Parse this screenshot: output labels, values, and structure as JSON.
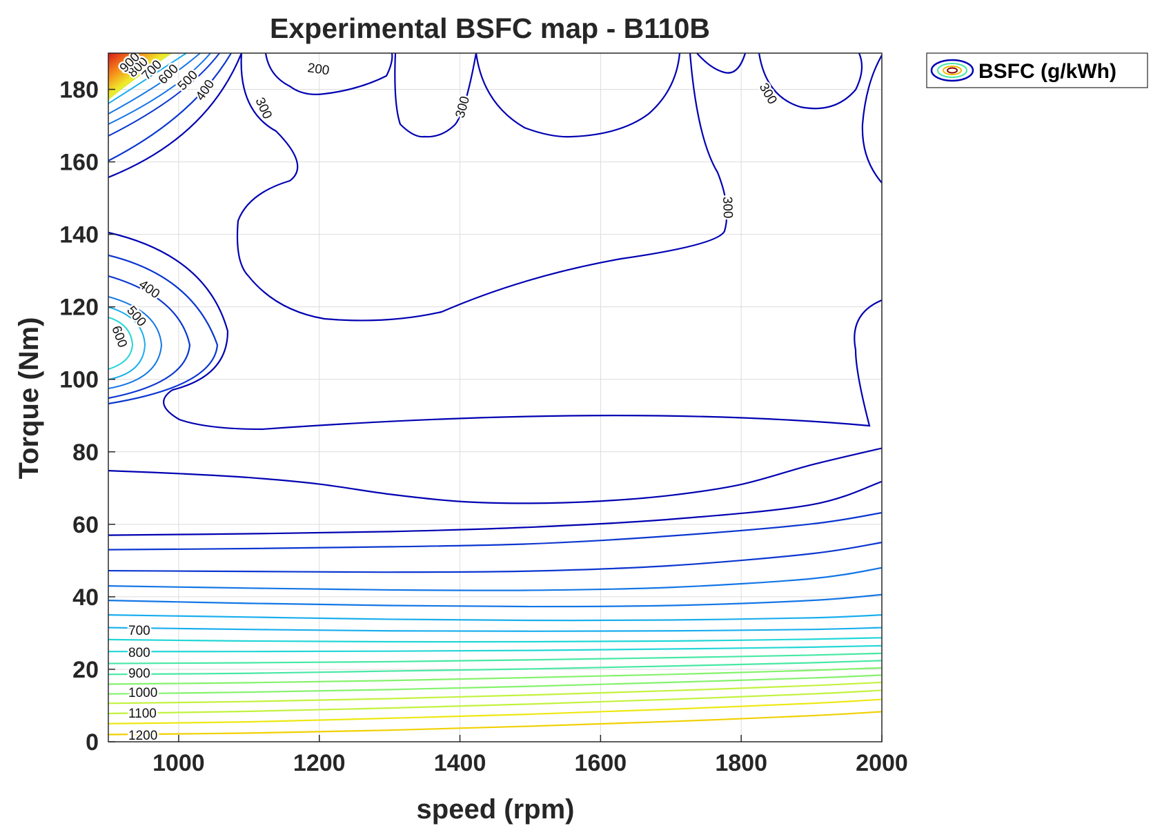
{
  "chart_data": {
    "type": "contour",
    "title": "Experimental BSFC map - B110B",
    "xlabel": "speed (rpm)",
    "ylabel": "Torque (Nm)",
    "xlim": [
      900,
      2000
    ],
    "ylim": [
      0,
      190
    ],
    "xticks": [
      1000,
      1200,
      1400,
      1600,
      1800,
      2000
    ],
    "yticks": [
      0,
      20,
      40,
      60,
      80,
      100,
      120,
      140,
      160,
      180
    ],
    "grid": true,
    "legend": {
      "label": "BSFC (g/kWh)",
      "placement": "outside-top-right"
    },
    "colormap": [
      "#0000B2",
      "#0A36D0",
      "#1376E6",
      "#18AEEE",
      "#22D6D6",
      "#46E8A4",
      "#84F26C",
      "#C2F23E",
      "#EDE812",
      "#F5B800",
      "#F57E00",
      "#EE3A00",
      "#D40000"
    ],
    "levels": [
      200,
      300,
      400,
      500,
      600,
      700,
      800,
      900,
      1000,
      1100,
      1200
    ],
    "series": [
      {
        "level": 1200,
        "x": [
          900,
          1100,
          1300,
          1500,
          1700,
          1900,
          2000
        ],
        "y": [
          2.0,
          2.4,
          3.2,
          4.3,
          5.6,
          7.2,
          8.3
        ]
      },
      {
        "level": 1150,
        "x": [
          900,
          1100,
          1300,
          1500,
          1700,
          1900,
          2000
        ],
        "y": [
          5.0,
          5.5,
          6.5,
          7.6,
          9.0,
          10.6,
          11.7
        ]
      },
      {
        "level": 1100,
        "x": [
          900,
          1100,
          1300,
          1500,
          1700,
          1900,
          2000
        ],
        "y": [
          7.8,
          8.4,
          9.3,
          10.4,
          11.7,
          13.2,
          14.2
        ]
      },
      {
        "level": 1050,
        "x": [
          900,
          1100,
          1300,
          1500,
          1700,
          1900,
          2000
        ],
        "y": [
          10.6,
          11.1,
          11.9,
          12.9,
          14.1,
          15.5,
          16.4
        ]
      },
      {
        "level": 1000,
        "x": [
          900,
          1100,
          1300,
          1500,
          1700,
          1900,
          2000
        ],
        "y": [
          13.2,
          13.7,
          14.4,
          15.3,
          16.4,
          17.6,
          18.4
        ]
      },
      {
        "level": 950,
        "x": [
          900,
          1100,
          1300,
          1500,
          1700,
          1900,
          2000
        ],
        "y": [
          15.9,
          16.3,
          16.9,
          17.7,
          18.6,
          19.7,
          20.4
        ]
      },
      {
        "level": 900,
        "x": [
          900,
          1100,
          1300,
          1500,
          1700,
          1900,
          2000
        ],
        "y": [
          18.6,
          18.9,
          19.5,
          20.1,
          20.9,
          21.8,
          22.4
        ]
      },
      {
        "level": 850,
        "x": [
          900,
          1100,
          1300,
          1500,
          1700,
          1900,
          2000
        ],
        "y": [
          21.6,
          21.8,
          22.1,
          22.6,
          23.2,
          23.9,
          24.4
        ]
      },
      {
        "level": 800,
        "x": [
          900,
          1100,
          1300,
          1500,
          1700,
          1900,
          2000
        ],
        "y": [
          24.9,
          24.9,
          25.0,
          25.2,
          25.6,
          26.1,
          26.5
        ]
      },
      {
        "level": 750,
        "x": [
          900,
          1100,
          1300,
          1500,
          1700,
          1900,
          2000
        ],
        "y": [
          28.2,
          27.8,
          27.6,
          27.6,
          27.8,
          28.3,
          28.7
        ]
      },
      {
        "level": 700,
        "x": [
          900,
          1100,
          1300,
          1500,
          1700,
          1900,
          2000
        ],
        "y": [
          31.5,
          31.0,
          30.6,
          30.5,
          30.6,
          31.0,
          31.5
        ]
      },
      {
        "level": 650,
        "x": [
          900,
          1100,
          1300,
          1500,
          1700,
          1900,
          2000
        ],
        "y": [
          35.0,
          34.4,
          33.8,
          33.5,
          33.6,
          34.2,
          35.0
        ]
      },
      {
        "level": 600,
        "x": [
          900,
          1100,
          1300,
          1500,
          1700,
          1900,
          2000
        ],
        "y": [
          39.0,
          38.2,
          37.6,
          37.3,
          37.6,
          39.0,
          40.6
        ]
      },
      {
        "level": 550,
        "x": [
          900,
          1100,
          1300,
          1500,
          1700,
          1900,
          2000
        ],
        "y": [
          43.0,
          42.4,
          41.9,
          41.8,
          42.6,
          45.0,
          48.0
        ]
      },
      {
        "level": 500,
        "x": [
          900,
          1100,
          1300,
          1500,
          1700,
          1900,
          2000
        ],
        "y": [
          47.2,
          47.0,
          46.8,
          47.1,
          48.6,
          51.9,
          55.0
        ]
      },
      {
        "level": 450,
        "x": [
          900,
          1100,
          1300,
          1500,
          1700,
          1900,
          2000
        ],
        "y": [
          53.0,
          53.3,
          53.8,
          54.6,
          56.8,
          60.1,
          63.2
        ]
      },
      {
        "level": 425,
        "x": [
          900,
          1100,
          1300,
          1500,
          1700,
          1900,
          2000
        ],
        "y": [
          57.0,
          57.4,
          58.0,
          59.2,
          61.4,
          65.4,
          71.8
        ]
      },
      {
        "level": 400,
        "x": [
          900,
          1000,
          1100,
          1200,
          1300,
          1400,
          1500,
          1600,
          1700,
          1800,
          1900,
          2000
        ],
        "y": [
          74.8,
          74.0,
          72.9,
          71.1,
          68.3,
          66.3,
          65.8,
          66.4,
          68.0,
          71.0,
          76.4,
          81.0
        ]
      }
    ],
    "other_contours": [
      {
        "level": 300,
        "description": "outer closed contour: from (1000, 93) along (1120, 86), (1500, 91.5), (1800, 87.5), (1950, 93), (1950, 105), (2000, 122)"
      },
      {
        "level": 300,
        "description": "inner plateau contour: (1320, 117) to (1610, 131) to (1790, 142) up to (1720, 190)"
      },
      {
        "level": 200,
        "description": "top contour near (1200, 180)-(1400, 190)"
      }
    ],
    "contour_labels": [
      "200",
      "300",
      "300",
      "300",
      "300",
      "400",
      "400",
      "500",
      "500",
      "600",
      "600",
      "700",
      "700",
      "800",
      "800",
      "900",
      "900",
      "1000",
      "1100",
      "1200"
    ]
  }
}
